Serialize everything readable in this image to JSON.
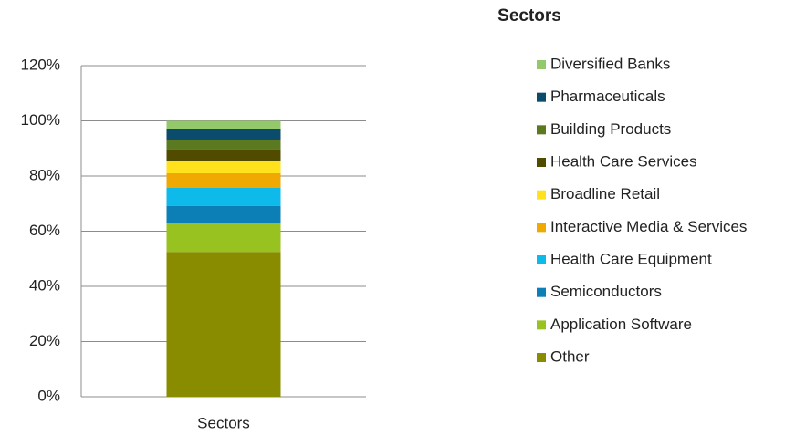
{
  "chart_data": {
    "type": "stacked_bar",
    "title": "Sectors",
    "categories": [
      "Sectors"
    ],
    "ylim": [
      0,
      120
    ],
    "yticks": [
      {
        "value": 0,
        "label": "0%"
      },
      {
        "value": 20,
        "label": "20%"
      },
      {
        "value": 40,
        "label": "40%"
      },
      {
        "value": 60,
        "label": "60%"
      },
      {
        "value": 80,
        "label": "80%"
      },
      {
        "value": 100,
        "label": "100%"
      },
      {
        "value": 120,
        "label": "120%"
      }
    ],
    "grid": true,
    "series": [
      {
        "name": "Other",
        "color": "#8a8c00",
        "values": [
          52.5
        ]
      },
      {
        "name": "Application Software",
        "color": "#98c21f",
        "values": [
          10.3
        ]
      },
      {
        "name": "Semiconductors",
        "color": "#0b7fb6",
        "values": [
          6.3
        ]
      },
      {
        "name": "Health Care Equipment",
        "color": "#0ebae9",
        "values": [
          6.6
        ]
      },
      {
        "name": "Interactive Media & Services",
        "color": "#f0a900",
        "values": [
          5.3
        ]
      },
      {
        "name": "Broadline Retail",
        "color": "#ffe11c",
        "values": [
          4.3
        ]
      },
      {
        "name": "Health Care Services",
        "color": "#514b00",
        "values": [
          4.3
        ]
      },
      {
        "name": "Building Products",
        "color": "#5b7a20",
        "values": [
          3.6
        ]
      },
      {
        "name": "Pharmaceuticals",
        "color": "#0b4b6b",
        "values": [
          3.7
        ]
      },
      {
        "name": "Diversified Banks",
        "color": "#93c96b",
        "values": [
          3.1
        ]
      }
    ]
  }
}
